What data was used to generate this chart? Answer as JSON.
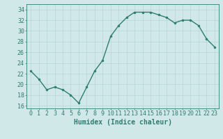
{
  "x": [
    0,
    1,
    2,
    3,
    4,
    5,
    6,
    7,
    8,
    9,
    10,
    11,
    12,
    13,
    14,
    15,
    16,
    17,
    18,
    19,
    20,
    21,
    22,
    23
  ],
  "y": [
    22.5,
    21.0,
    19.0,
    19.5,
    19.0,
    18.0,
    16.5,
    19.5,
    22.5,
    24.5,
    29.0,
    31.0,
    32.5,
    33.5,
    33.5,
    33.5,
    33.0,
    32.5,
    31.5,
    32.0,
    32.0,
    31.0,
    28.5,
    27.0
  ],
  "line_color": "#2e7d6e",
  "marker": "o",
  "marker_size": 2,
  "bg_color": "#d0e8e8",
  "grid_color": "#b8d4d4",
  "xlabel": "Humidex (Indice chaleur)",
  "ylim": [
    15.5,
    35.0
  ],
  "xlim": [
    -0.5,
    23.5
  ],
  "yticks": [
    16,
    18,
    20,
    22,
    24,
    26,
    28,
    30,
    32,
    34
  ],
  "xticks": [
    0,
    1,
    2,
    3,
    4,
    5,
    6,
    7,
    8,
    9,
    10,
    11,
    12,
    13,
    14,
    15,
    16,
    17,
    18,
    19,
    20,
    21,
    22,
    23
  ],
  "tick_color": "#2e7d6e",
  "xlabel_fontsize": 7,
  "tick_fontsize": 6,
  "linewidth": 1.0
}
